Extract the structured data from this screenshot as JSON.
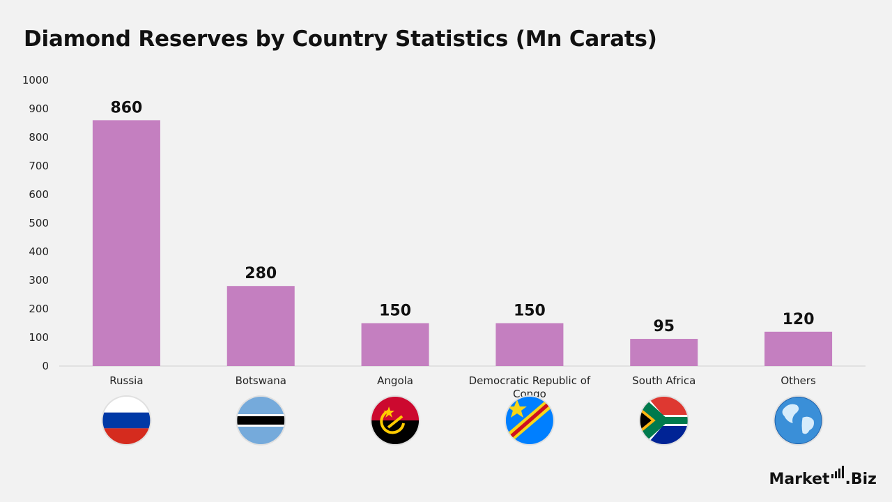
{
  "title": "Diamond Reserves by Country Statistics (Mn Carats)",
  "chart_data": {
    "type": "bar",
    "categories": [
      "Russia",
      "Botswana",
      "Angola",
      "Democratic Republic of Congo",
      "South Africa",
      "Others"
    ],
    "values": [
      860,
      280,
      150,
      150,
      95,
      120
    ],
    "data_labels": [
      "860",
      "280",
      "150",
      "150",
      "95",
      "120"
    ],
    "title": "Diamond Reserves by Country Statistics (Mn Carats)",
    "xlabel": "",
    "ylabel": "",
    "ylim": [
      0,
      1000
    ],
    "yticks": [
      0,
      100,
      200,
      300,
      400,
      500,
      600,
      700,
      800,
      900,
      1000
    ],
    "grid": false,
    "legend": "none",
    "bar_color": "#c47fc0"
  },
  "flags": [
    "russia-flag-icon",
    "botswana-flag-icon",
    "angola-flag-icon",
    "drc-flag-icon",
    "south-africa-flag-icon",
    "globe-icon"
  ],
  "brand": {
    "left": "Market",
    "right": ".Biz"
  }
}
